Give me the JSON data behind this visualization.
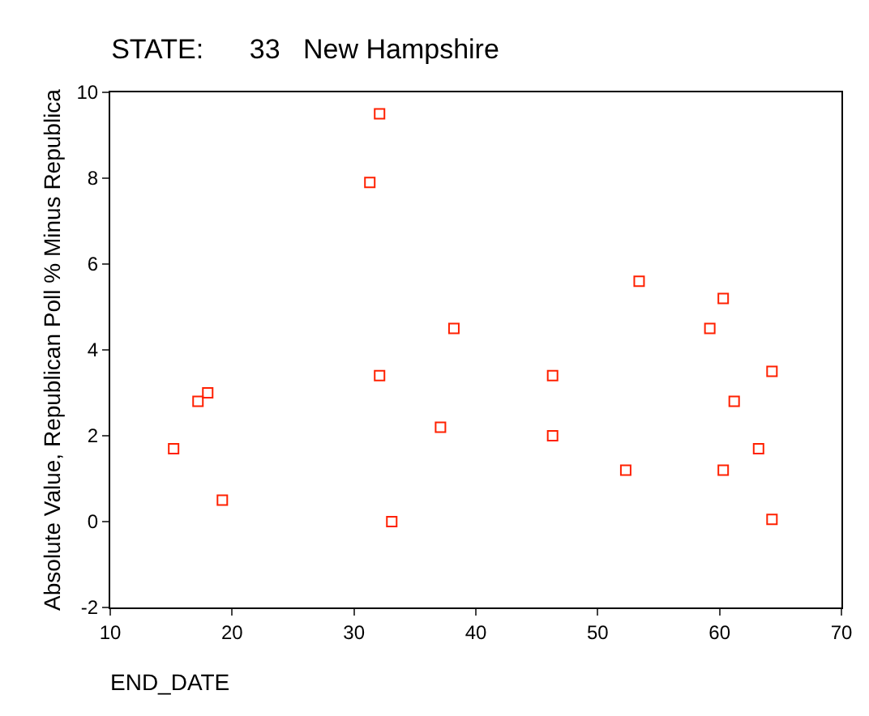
{
  "chart_data": {
    "type": "scatter",
    "title": "STATE:      33   New Hampshire",
    "xlabel": "END_DATE",
    "ylabel": "Absolute Value, Republican Poll % Minus Republica",
    "x": [
      15.2,
      17.2,
      18,
      19.2,
      31.3,
      32.1,
      32.1,
      33.1,
      37.1,
      38.2,
      46.3,
      46.3,
      52.3,
      53.4,
      59.2,
      60.3,
      60.3,
      61.2,
      63.2,
      64.3,
      64.3
    ],
    "values": [
      1.7,
      2.8,
      3.0,
      0.5,
      7.9,
      9.5,
      3.4,
      0,
      2.2,
      4.5,
      3.4,
      2.0,
      1.2,
      5.6,
      4.5,
      5.2,
      1.2,
      2.8,
      1.7,
      3.5,
      0.05
    ],
    "color": "#ff2000",
    "marker": "square",
    "grid": false,
    "xlim": [
      10,
      70
    ],
    "xticks": [
      10,
      20,
      30,
      40,
      50,
      60,
      70
    ],
    "ylim": [
      -2,
      10
    ],
    "yticks": [
      -2,
      0,
      2,
      4,
      6,
      8,
      10
    ]
  }
}
